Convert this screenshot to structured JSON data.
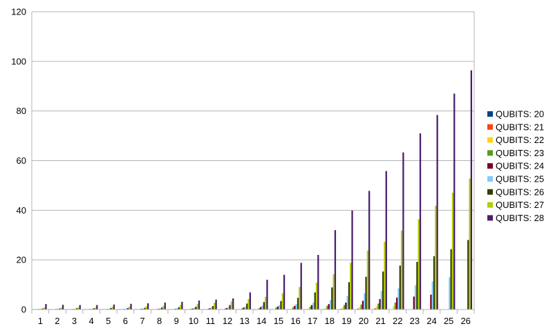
{
  "chart_data": {
    "type": "bar",
    "title": "",
    "xlabel": "",
    "ylabel": "",
    "ylim": [
      0,
      120
    ],
    "yticks": [
      "0",
      "20",
      "40",
      "60",
      "80",
      "100",
      "120"
    ],
    "grid": true,
    "legend_position": "right",
    "categories": [
      "1",
      "2",
      "3",
      "4",
      "5",
      "6",
      "7",
      "8",
      "9",
      "10",
      "11",
      "12",
      "13",
      "14",
      "15",
      "16",
      "17",
      "18",
      "19",
      "20",
      "21",
      "22",
      "23",
      "24",
      "25",
      "26"
    ],
    "series": [
      {
        "name": "QUBITS: 20",
        "color": "#004586",
        "values": [
          0.05,
          0.05,
          0.05,
          0.05,
          0.05,
          0.05,
          0.05,
          0.05,
          0.05,
          0.05,
          0.05,
          0.05,
          0.05,
          0.05,
          0.05,
          0.05,
          0.05,
          0.1,
          0.1,
          0.1,
          0.1,
          null,
          null,
          null,
          null,
          null
        ]
      },
      {
        "name": "QUBITS: 21",
        "color": "#ff420e",
        "values": [
          0.05,
          0.05,
          0.05,
          0.05,
          0.05,
          0.05,
          0.05,
          0.05,
          0.05,
          0.05,
          0.05,
          0.05,
          0.05,
          0.05,
          0.05,
          0.1,
          0.15,
          0.2,
          0.3,
          0.4,
          0.5,
          null,
          null,
          null,
          null,
          null
        ]
      },
      {
        "name": "QUBITS: 22",
        "color": "#ffd320",
        "values": [
          0.1,
          0.1,
          0.1,
          0.1,
          0.1,
          0.1,
          0.1,
          0.1,
          0.1,
          0.1,
          0.1,
          0.1,
          0.1,
          0.1,
          0.2,
          0.3,
          0.4,
          0.6,
          0.8,
          1.0,
          1.2,
          1.5,
          null,
          null,
          null,
          null
        ]
      },
      {
        "name": "QUBITS: 23",
        "color": "#579d1c",
        "values": [
          0.2,
          0.2,
          0.2,
          0.2,
          0.2,
          0.2,
          0.2,
          0.2,
          0.2,
          0.3,
          0.3,
          0.4,
          0.5,
          0.6,
          0.8,
          1.0,
          1.2,
          1.5,
          1.8,
          2.0,
          2.4,
          2.8,
          null,
          null,
          null,
          null
        ]
      },
      {
        "name": "QUBITS: 24",
        "color": "#7e0021",
        "values": [
          0.2,
          0.2,
          0.2,
          0.2,
          0.2,
          0.2,
          0.3,
          0.3,
          0.3,
          0.4,
          0.5,
          0.6,
          0.8,
          1.0,
          1.2,
          1.5,
          1.8,
          2.2,
          2.8,
          3.5,
          4.2,
          4.8,
          5.2,
          6.0,
          null,
          null
        ]
      },
      {
        "name": "QUBITS: 25",
        "color": "#83caff",
        "values": [
          0.3,
          0.3,
          0.3,
          0.3,
          0.3,
          0.4,
          0.4,
          0.5,
          0.5,
          0.7,
          0.8,
          1.0,
          1.2,
          1.6,
          1.8,
          2.2,
          2.8,
          3.8,
          5.5,
          6.5,
          7.5,
          8.5,
          9.8,
          11.3,
          13.0,
          null
        ]
      },
      {
        "name": "QUBITS: 26",
        "color": "#314004",
        "values": [
          0.4,
          0.4,
          0.5,
          0.5,
          0.6,
          0.6,
          0.7,
          0.8,
          0.9,
          1.1,
          1.4,
          1.8,
          2.4,
          3.0,
          3.4,
          4.7,
          6.9,
          8.9,
          11.0,
          13.2,
          15.3,
          17.7,
          19.2,
          21.5,
          24.3,
          28.0
        ]
      },
      {
        "name": "QUBITS: 27",
        "color": "#aecf00",
        "values": [
          0.8,
          0.8,
          0.8,
          0.8,
          1.1,
          1.2,
          1.3,
          1.5,
          1.8,
          2.2,
          2.8,
          3.3,
          4.2,
          5.1,
          6.6,
          9.1,
          10.8,
          14.2,
          18.8,
          23.8,
          27.3,
          31.8,
          36.4,
          41.8,
          47.1,
          52.8
        ]
      },
      {
        "name": "QUBITS: 28",
        "color": "#4b1f6f",
        "values": [
          2.2,
          1.9,
          1.8,
          1.8,
          2.0,
          2.3,
          2.5,
          2.8,
          3.1,
          3.6,
          4.0,
          4.5,
          6.9,
          12.0,
          14.0,
          18.8,
          22.0,
          32.0,
          39.9,
          47.8,
          55.8,
          63.3,
          71.0,
          78.4,
          87.0,
          96.4
        ]
      }
    ]
  }
}
